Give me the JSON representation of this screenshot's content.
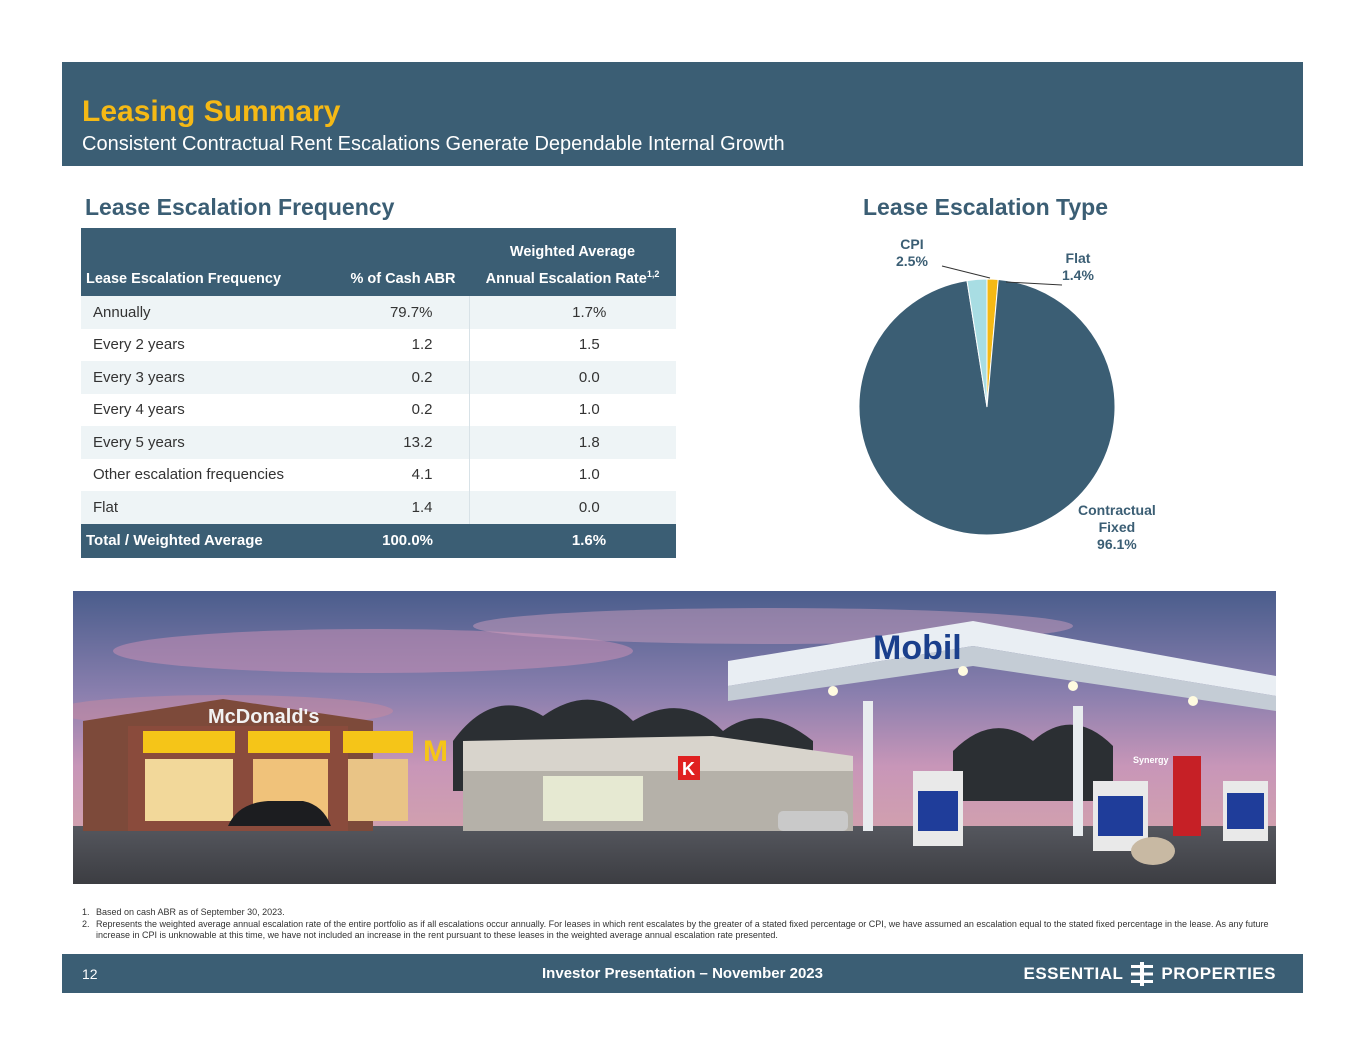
{
  "header": {
    "title": "Leasing Summary",
    "subtitle": "Consistent Contractual Rent Escalations Generate Dependable Internal Growth"
  },
  "frequency_section": {
    "title": "Lease Escalation Frequency",
    "table": {
      "header_top": "Weighted Average",
      "columns": [
        "Lease Escalation Frequency",
        "% of Cash ABR",
        "Annual Escalation Rate"
      ],
      "col3_superscript": "1,2",
      "rows": [
        [
          "Annually",
          "79.7%",
          "1.7%"
        ],
        [
          "Every 2 years",
          "1.2",
          "1.5"
        ],
        [
          "Every 3 years",
          "0.2",
          "0.0"
        ],
        [
          "Every 4 years",
          "0.2",
          "1.0"
        ],
        [
          "Every 5 years",
          "13.2",
          "1.8"
        ],
        [
          "Other escalation frequencies",
          "4.1",
          "1.0"
        ],
        [
          "Flat",
          "1.4",
          "0.0"
        ]
      ],
      "total": [
        "Total / Weighted Average",
        "100.0%",
        "1.6%"
      ]
    }
  },
  "type_section": {
    "title": "Lease Escalation Type",
    "pie_labels": {
      "cpi": [
        "CPI",
        "2.5%"
      ],
      "flat": [
        "Flat",
        "1.4%"
      ],
      "fixed": [
        "Contractual",
        "Fixed",
        "96.1%"
      ]
    }
  },
  "chart_data": {
    "type": "pie",
    "title": "Lease Escalation Type",
    "slices": [
      {
        "label": "Contractual Fixed",
        "value": 96.1,
        "color": "#3b5e74"
      },
      {
        "label": "CPI",
        "value": 2.5,
        "color": "#a8dde3"
      },
      {
        "label": "Flat",
        "value": 1.4,
        "color": "#f5b915"
      }
    ],
    "start_angle_deg": 0,
    "order_clockwise": [
      "Flat",
      "Contractual Fixed",
      "CPI"
    ]
  },
  "photo": {
    "signs": {
      "mcdonalds": "McDonald's",
      "mobil": "Mobil",
      "circle_k": "K",
      "synergy": "Synergy"
    }
  },
  "footnotes": [
    {
      "num": "1.",
      "text": "Based on cash ABR as of September 30, 2023."
    },
    {
      "num": "2.",
      "text": "Represents the weighted average annual escalation rate of the entire portfolio as if all escalations occur annually. For leases in which rent escalates by the greater of a stated fixed percentage or CPI, we have assumed an escalation equal to the stated fixed percentage in the lease. As any future increase in CPI is unknowable at this time, we have not included an increase in the rent pursuant to these leases in the weighted average annual escalation rate presented."
    }
  ],
  "footer": {
    "page_number": "12",
    "center_text": "Investor Presentation – November 2023",
    "logo_left": "ESSENTIAL",
    "logo_right": "PROPERTIES"
  },
  "colors": {
    "navy": "#3b5e74",
    "gold": "#f5b915",
    "light_teal": "#a8dde3",
    "row_alt": "#eef4f6"
  }
}
